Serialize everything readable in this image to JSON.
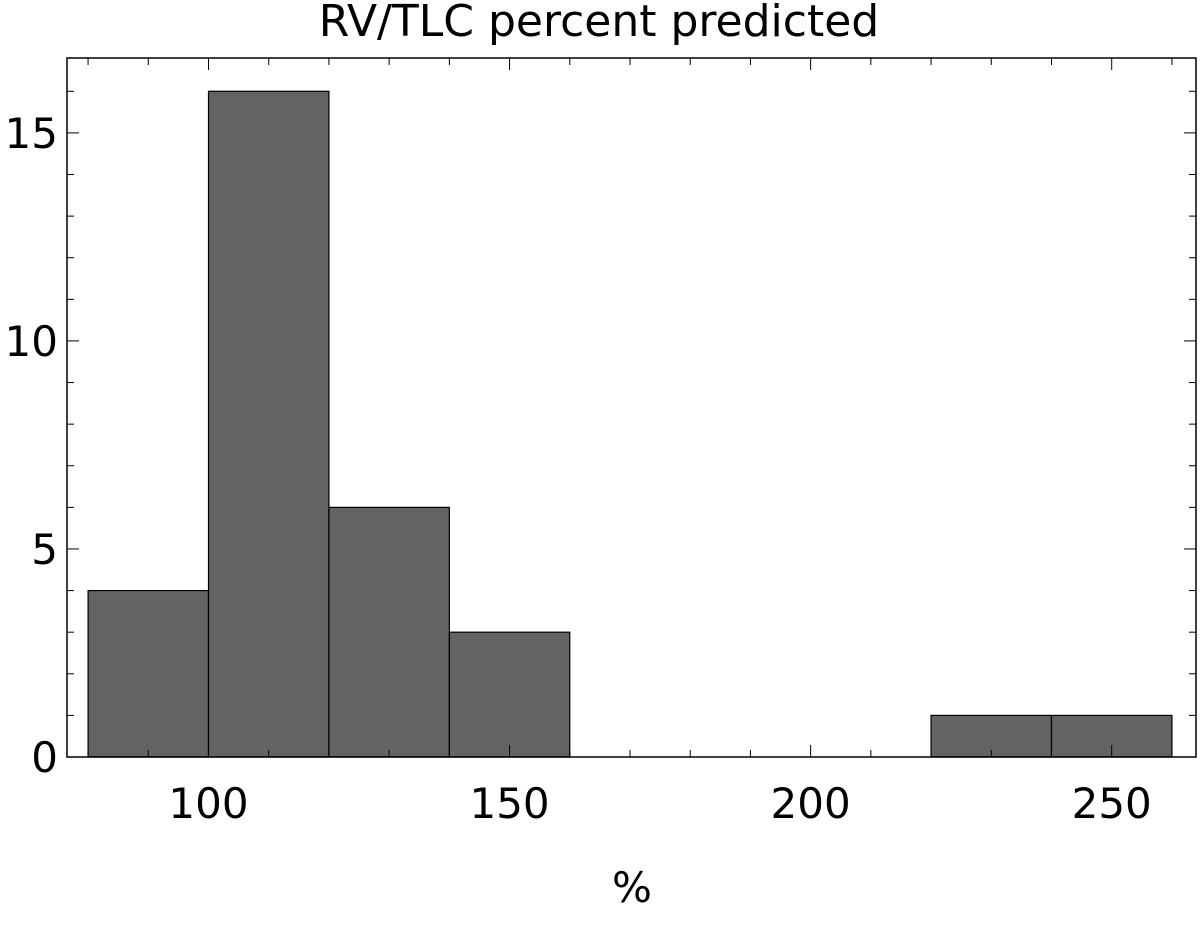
{
  "chart_data": {
    "type": "bar",
    "title": "RV/TLC percent predicted",
    "xlabel": "%",
    "ylabel": "",
    "bins": [
      {
        "start": 80,
        "end": 100,
        "count": 4
      },
      {
        "start": 100,
        "end": 120,
        "count": 16
      },
      {
        "start": 120,
        "end": 140,
        "count": 6
      },
      {
        "start": 140,
        "end": 160,
        "count": 3
      },
      {
        "start": 160,
        "end": 180,
        "count": 0
      },
      {
        "start": 180,
        "end": 200,
        "count": 0
      },
      {
        "start": 200,
        "end": 220,
        "count": 0
      },
      {
        "start": 220,
        "end": 240,
        "count": 1
      },
      {
        "start": 240,
        "end": 260,
        "count": 1
      }
    ],
    "xlim": [
      76.5,
      264
    ],
    "ylim": [
      0,
      16.8
    ],
    "x_ticks": [
      "100",
      "150",
      "200",
      "250"
    ],
    "y_ticks": [
      "0",
      "5",
      "10",
      "15"
    ],
    "grid": false,
    "bar_color": "#636361",
    "edge_color": "#000000"
  }
}
